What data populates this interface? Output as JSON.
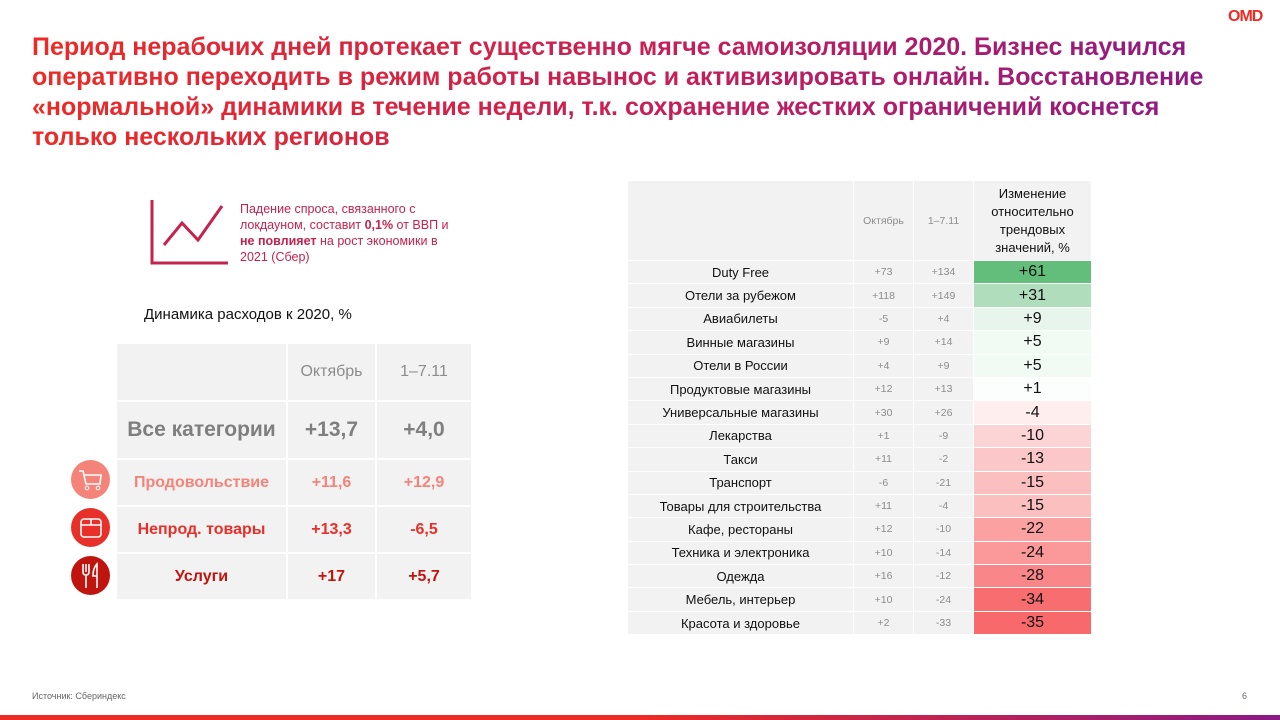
{
  "title": "Период нерабочих дней протекает существенно мягче самоизоляции 2020. Бизнес научился оперативно переходить в режим работы навынос и активизировать онлайн. Восстановление «нормальной» динамики в течение недели, т.к. сохранение жестких ограничений коснется только нескольких регионов",
  "logo": "OMD",
  "note": {
    "p1": "Падение спроса, связанного с локдауном, составит ",
    "b1": "0,1%",
    "p2": " от ВВП и ",
    "b2": "не повлияет",
    "p3": " на рост экономики в 2021 (Сбер)"
  },
  "left_table": {
    "subtitle": "Динамика расходов к 2020, %",
    "headers": [
      "",
      "Октябрь",
      "1–7.11"
    ],
    "all": {
      "label": "Все категории",
      "oct": "+13,7",
      "nov": "+4,0"
    },
    "rows": [
      {
        "label": "Продовольствие",
        "oct": "+11,6",
        "nov": "+12,9",
        "color": "#f4847a",
        "icon": "shopping-cart-icon"
      },
      {
        "label": "Непрод. товары",
        "oct": "+13,3",
        "nov": "-6,5",
        "color": "#e8302a",
        "icon": "box-icon"
      },
      {
        "label": "Услуги",
        "oct": "+17",
        "nov": "+5,7",
        "color": "#c0150f",
        "icon": "fork-knife-icon"
      }
    ]
  },
  "right_table": {
    "headers": [
      "",
      "Октябрь",
      "1–7.11",
      "Изменение относительно трендовых значений, %"
    ],
    "rows": [
      {
        "label": "Duty Free",
        "oct": "+73",
        "nov": "+134",
        "change": "+61",
        "value": 61
      },
      {
        "label": "Отели за рубежом",
        "oct": "+118",
        "nov": "+149",
        "change": "+31",
        "value": 31
      },
      {
        "label": "Авиабилеты",
        "oct": "-5",
        "nov": "+4",
        "change": "+9",
        "value": 9
      },
      {
        "label": "Винные магазины",
        "oct": "+9",
        "nov": "+14",
        "change": "+5",
        "value": 5
      },
      {
        "label": "Отели в России",
        "oct": "+4",
        "nov": "+9",
        "change": "+5",
        "value": 5
      },
      {
        "label": "Продуктовые магазины",
        "oct": "+12",
        "nov": "+13",
        "change": "+1",
        "value": 1
      },
      {
        "label": "Универсальные магазины",
        "oct": "+30",
        "nov": "+26",
        "change": "-4",
        "value": -4
      },
      {
        "label": "Лекарства",
        "oct": "+1",
        "nov": "-9",
        "change": "-10",
        "value": -10
      },
      {
        "label": "Такси",
        "oct": "+11",
        "nov": "-2",
        "change": "-13",
        "value": -13
      },
      {
        "label": "Транспорт",
        "oct": "-6",
        "nov": "-21",
        "change": "-15",
        "value": -15
      },
      {
        "label": "Товары для строительства",
        "oct": "+11",
        "nov": "-4",
        "change": "-15",
        "value": -15
      },
      {
        "label": "Кафе, рестораны",
        "oct": "+12",
        "nov": "-10",
        "change": "-22",
        "value": -22
      },
      {
        "label": "Техника и электроника",
        "oct": "+10",
        "nov": "-14",
        "change": "-24",
        "value": -24
      },
      {
        "label": "Одежда",
        "oct": "+16",
        "nov": "-12",
        "change": "-28",
        "value": -28
      },
      {
        "label": "Мебель, интерьер",
        "oct": "+10",
        "nov": "-24",
        "change": "-34",
        "value": -34
      },
      {
        "label": "Красота и здоровье",
        "oct": "+2",
        "nov": "-33",
        "change": "-35",
        "value": -35
      }
    ]
  },
  "footer": {
    "source": "Источник: Сбериндекс",
    "page": "6"
  }
}
